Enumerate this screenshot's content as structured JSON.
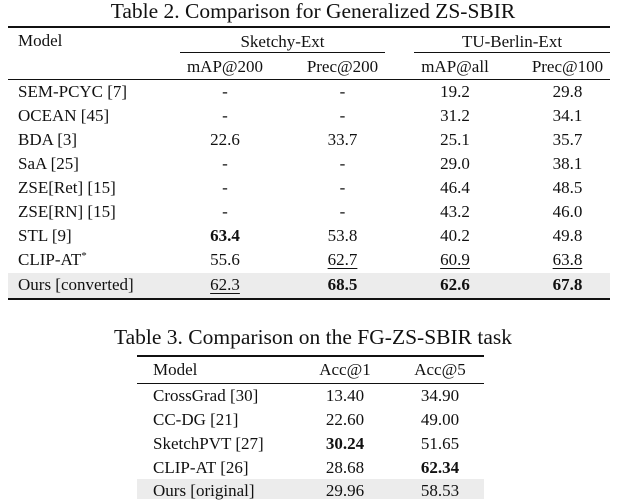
{
  "table2": {
    "caption": "Table 2. Comparison for Generalized ZS-SBIR",
    "model_header": "Model",
    "group1": "Sketchy-Ext",
    "group2": "TU-Berlin-Ext",
    "cols": [
      "mAP@200",
      "Prec@200",
      "mAP@all",
      "Prec@100"
    ],
    "rows": [
      {
        "model": "SEM-PCYC [7]",
        "v": [
          "-",
          "-",
          "19.2",
          "29.8"
        ]
      },
      {
        "model": "OCEAN [45]",
        "v": [
          "-",
          "-",
          "31.2",
          "34.1"
        ]
      },
      {
        "model": "BDA [3]",
        "v": [
          "22.6",
          "33.7",
          "25.1",
          "35.7"
        ]
      },
      {
        "model": "SaA [25]",
        "v": [
          "-",
          "-",
          "29.0",
          "38.1"
        ]
      },
      {
        "model": "ZSE[Ret] [15]",
        "v": [
          "-",
          "-",
          "46.4",
          "48.5"
        ]
      },
      {
        "model": "ZSE[RN] [15]",
        "v": [
          "-",
          "-",
          "43.2",
          "46.0"
        ]
      },
      {
        "model": "STL [9]",
        "v": [
          "63.4",
          "53.8",
          "40.2",
          "49.8"
        ]
      },
      {
        "model": "CLIP-AT",
        "sup": "*",
        "v": [
          "55.6",
          "62.7",
          "60.9",
          "63.8"
        ]
      },
      {
        "model": "Ours [converted]",
        "v": [
          "62.3",
          "68.5",
          "62.6",
          "67.8"
        ]
      }
    ]
  },
  "table3": {
    "caption": "Table 3. Comparison on the FG-ZS-SBIR task",
    "cols": [
      "Model",
      "Acc@1",
      "Acc@5"
    ],
    "rows": [
      {
        "model": "CrossGrad [30]",
        "v": [
          "13.40",
          "34.90"
        ]
      },
      {
        "model": "CC-DG [21]",
        "v": [
          "22.60",
          "49.00"
        ]
      },
      {
        "model": "SketchPVT [27]",
        "v": [
          "30.24",
          "51.65"
        ]
      },
      {
        "model": "CLIP-AT [26]",
        "v": [
          "28.68",
          "62.34"
        ]
      },
      {
        "model": "Ours [original]",
        "v": [
          "29.96",
          "58.53"
        ]
      }
    ]
  }
}
